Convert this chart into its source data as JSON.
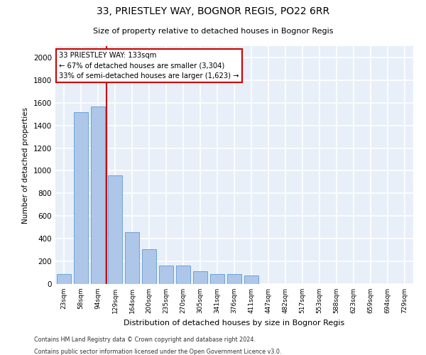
{
  "title_line1": "33, PRIESTLEY WAY, BOGNOR REGIS, PO22 6RR",
  "title_line2": "Size of property relative to detached houses in Bognor Regis",
  "xlabel": "Distribution of detached houses by size in Bognor Regis",
  "ylabel": "Number of detached properties",
  "categories": [
    "23sqm",
    "58sqm",
    "94sqm",
    "129sqm",
    "164sqm",
    "200sqm",
    "235sqm",
    "270sqm",
    "305sqm",
    "341sqm",
    "376sqm",
    "411sqm",
    "447sqm",
    "482sqm",
    "517sqm",
    "553sqm",
    "588sqm",
    "623sqm",
    "659sqm",
    "694sqm",
    "729sqm"
  ],
  "values": [
    90,
    1520,
    1570,
    960,
    460,
    310,
    165,
    165,
    115,
    90,
    90,
    75,
    0,
    0,
    0,
    0,
    0,
    0,
    0,
    0,
    0
  ],
  "bar_color": "#aec6e8",
  "bar_edge_color": "#5b9bd5",
  "background_color": "#e8eff8",
  "grid_color": "#ffffff",
  "vline_color": "#cc0000",
  "vline_x_index": 2.5,
  "annotation_text": "33 PRIESTLEY WAY: 133sqm\n← 67% of detached houses are smaller (3,304)\n33% of semi-detached houses are larger (1,623) →",
  "annotation_box_color": "#cc0000",
  "ylim": [
    0,
    2100
  ],
  "yticks": [
    0,
    200,
    400,
    600,
    800,
    1000,
    1200,
    1400,
    1600,
    1800,
    2000
  ],
  "footer_line1": "Contains HM Land Registry data © Crown copyright and database right 2024.",
  "footer_line2": "Contains public sector information licensed under the Open Government Licence v3.0."
}
